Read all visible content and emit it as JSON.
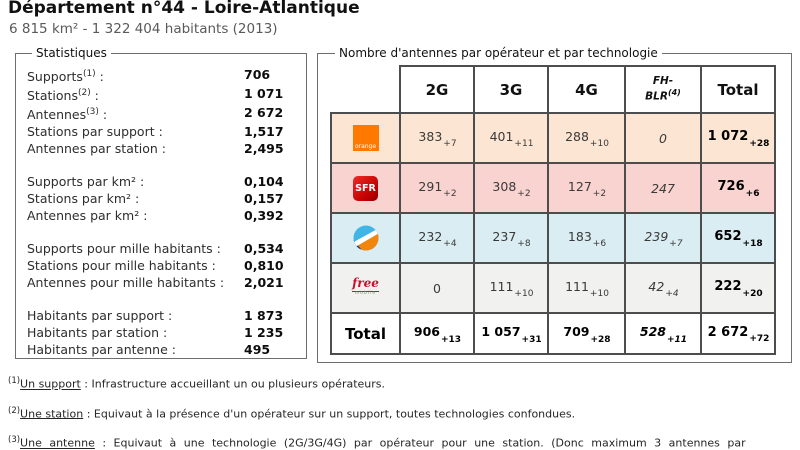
{
  "page": {
    "title": "Département n°44 - Loire-Atlantique",
    "subtitle": "6 815 km² - 1 322 404 habitants (2013)"
  },
  "stats": {
    "legend": "Statistiques",
    "label_suffix": " :",
    "groups": [
      {
        "rows": [
          {
            "label": "Supports",
            "sup": "(1)",
            "value": "706"
          },
          {
            "label": "Stations",
            "sup": "(2)",
            "value": "1 071"
          },
          {
            "label": "Antennes",
            "sup": "(3)",
            "value": "2 672"
          },
          {
            "label": "Stations par support",
            "sup": "",
            "value": "1,517"
          },
          {
            "label": "Antennes par station",
            "sup": "",
            "value": "2,495"
          }
        ]
      },
      {
        "rows": [
          {
            "label": "Supports par km²",
            "sup": "",
            "value": "0,104"
          },
          {
            "label": "Stations par km²",
            "sup": "",
            "value": "0,157"
          },
          {
            "label": "Antennes par km²",
            "sup": "",
            "value": "0,392"
          }
        ]
      },
      {
        "rows": [
          {
            "label": "Supports pour mille habitants",
            "sup": "",
            "value": "0,534"
          },
          {
            "label": "Stations pour mille habitants",
            "sup": "",
            "value": "0,810"
          },
          {
            "label": "Antennes pour mille habitants",
            "sup": "",
            "value": "2,021"
          }
        ]
      },
      {
        "rows": [
          {
            "label": "Habitants par support",
            "sup": "",
            "value": "1 873"
          },
          {
            "label": "Habitants par station",
            "sup": "",
            "value": "1 235"
          },
          {
            "label": "Habitants par antenne",
            "sup": "",
            "value": "495"
          }
        ]
      }
    ]
  },
  "antennas": {
    "legend": "Nombre d'antennes par opérateur et par technologie",
    "columns": [
      {
        "label": "2G",
        "sup": "",
        "fh": false
      },
      {
        "label": "3G",
        "sup": "",
        "fh": false
      },
      {
        "label": "4G",
        "sup": "",
        "fh": false
      },
      {
        "label": "FH-\nBLR",
        "sup": "(4)",
        "fh": true
      },
      {
        "label": "Total",
        "sup": "",
        "fh": false
      }
    ],
    "total_label": "Total",
    "operators": [
      {
        "key": "orange",
        "logo_text": "orange",
        "logo_subtext": "",
        "row_color": "#fce6d3",
        "logo_color": "#ff7900",
        "cells": [
          {
            "v": "383",
            "s": "+7"
          },
          {
            "v": "401",
            "s": "+11"
          },
          {
            "v": "288",
            "s": "+10"
          },
          {
            "v": "0",
            "s": ""
          },
          {
            "v": "1 072",
            "s": "+28"
          }
        ]
      },
      {
        "key": "sfr",
        "logo_text": "SFR",
        "logo_subtext": "",
        "row_color": "#f8d3d0",
        "logo_color": "#d4000e",
        "cells": [
          {
            "v": "291",
            "s": "+2"
          },
          {
            "v": "308",
            "s": "+2"
          },
          {
            "v": "127",
            "s": "+2"
          },
          {
            "v": "247",
            "s": ""
          },
          {
            "v": "726",
            "s": "+6"
          }
        ]
      },
      {
        "key": "bouygues",
        "logo_text": "",
        "logo_subtext": "",
        "row_color": "#d9edf2",
        "logo_color": "#41b6e6",
        "cells": [
          {
            "v": "232",
            "s": "+4"
          },
          {
            "v": "237",
            "s": "+8"
          },
          {
            "v": "183",
            "s": "+6"
          },
          {
            "v": "239",
            "s": "+7"
          },
          {
            "v": "652",
            "s": "+18"
          }
        ]
      },
      {
        "key": "free",
        "logo_text": "free",
        "logo_subtext": "mobile",
        "row_color": "#f1f1f0",
        "logo_color": "#c8102e",
        "cells": [
          {
            "v": "0",
            "s": ""
          },
          {
            "v": "111",
            "s": "+10"
          },
          {
            "v": "111",
            "s": "+10"
          },
          {
            "v": "42",
            "s": "+4"
          },
          {
            "v": "222",
            "s": "+20"
          }
        ]
      }
    ],
    "totals": [
      {
        "v": "906",
        "s": "+13"
      },
      {
        "v": "1 057",
        "s": "+31"
      },
      {
        "v": "709",
        "s": "+28"
      },
      {
        "v": "528",
        "s": "+11"
      },
      {
        "v": "2 672",
        "s": "+72"
      }
    ]
  },
  "footnotes": [
    {
      "sup": "(1)",
      "term": "Un support",
      "text": " : Infrastructure accueillant un ou plusieurs opérateurs."
    },
    {
      "sup": "(2)",
      "term": "Une station",
      "text": " : Equivaut à la présence d'un opérateur sur un support, toutes technologies confondues."
    },
    {
      "sup": "(3)",
      "term": "Une antenne",
      "text": " : Equivaut à une technologie (2G/3G/4G) par opérateur pour une station. (Donc maximum 3 antennes par"
    }
  ]
}
